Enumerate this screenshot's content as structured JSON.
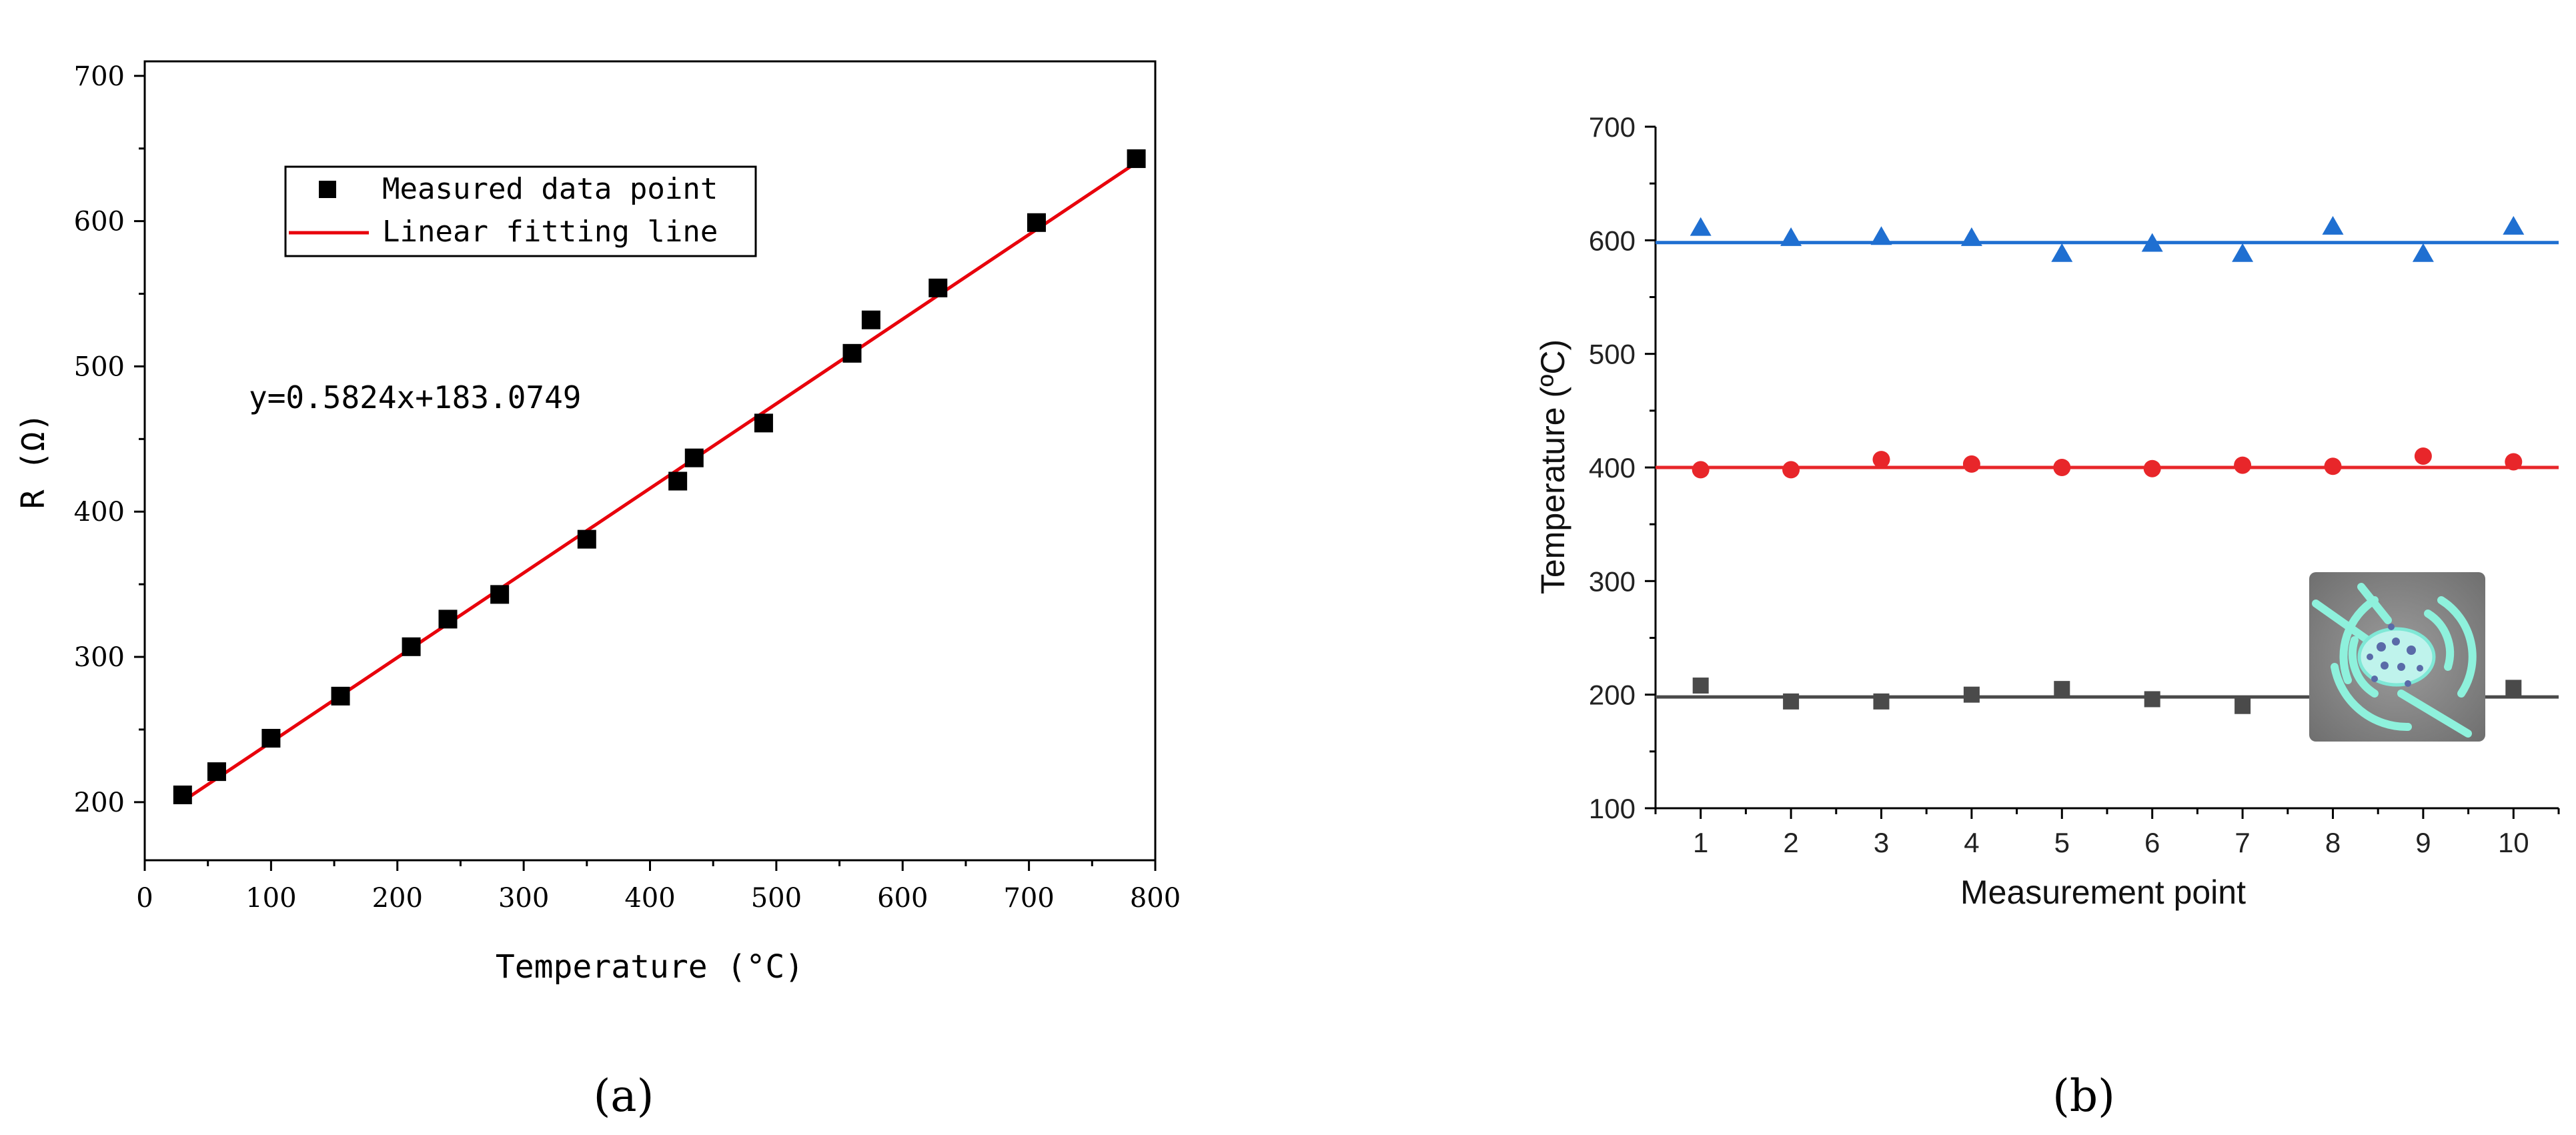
{
  "chart_data": [
    {
      "type": "scatter",
      "panel_label": "(a)",
      "xlabel": "Temperature (°C)",
      "ylabel": "R (Ω)",
      "xlim": [
        0,
        800
      ],
      "ylim": [
        160,
        710
      ],
      "xticks": [
        0,
        100,
        200,
        300,
        400,
        500,
        600,
        700,
        800
      ],
      "yticks": [
        200,
        300,
        400,
        500,
        600,
        700
      ],
      "grid": false,
      "legend_placement": "top-left",
      "equation": "y=0.5824x+183.0749",
      "fit": {
        "slope": 0.5824,
        "intercept": 183.0749,
        "x_range": [
          30,
          785
        ]
      },
      "series": [
        {
          "name": "Measured data point",
          "marker": "square",
          "color": "#000000",
          "points": [
            [
              30,
              205
            ],
            [
              57,
              221
            ],
            [
              100,
              244
            ],
            [
              155,
              273
            ],
            [
              211,
              307
            ],
            [
              240,
              326
            ],
            [
              281,
              343
            ],
            [
              350,
              381
            ],
            [
              422,
              421
            ],
            [
              435,
              437
            ],
            [
              490,
              461
            ],
            [
              560,
              509
            ],
            [
              575,
              532
            ],
            [
              628,
              554
            ],
            [
              706,
              599
            ],
            [
              785,
              643
            ]
          ]
        },
        {
          "name": "Linear fitting line",
          "marker": "line",
          "color": "#e8000b"
        }
      ]
    },
    {
      "type": "scatter",
      "panel_label": "(b)",
      "xlabel": "Measurement point",
      "ylabel": "Temperature (ºC)",
      "xlim": [
        0.5,
        10.5
      ],
      "ylim": [
        100,
        700
      ],
      "xticks": [
        1,
        2,
        3,
        4,
        5,
        6,
        7,
        8,
        9,
        10
      ],
      "yticks": [
        100,
        200,
        300,
        400,
        500,
        600,
        700
      ],
      "grid": false,
      "categories": [
        1,
        2,
        3,
        4,
        5,
        6,
        7,
        8,
        9,
        10
      ],
      "series": [
        {
          "marker": "triangle",
          "color": "#1f6fd1",
          "reference": 598,
          "values": [
            611,
            602,
            603,
            602,
            588,
            597,
            588,
            612,
            588,
            612
          ]
        },
        {
          "marker": "circle",
          "color": "#e8262a",
          "reference": 400,
          "values": [
            398,
            398,
            407,
            403,
            400,
            399,
            402,
            401,
            410,
            405
          ]
        },
        {
          "marker": "square",
          "color": "#4a4a4a",
          "reference": 198,
          "values": [
            208,
            194,
            194,
            200,
            205,
            196,
            190,
            null,
            null,
            206
          ]
        }
      ]
    }
  ]
}
